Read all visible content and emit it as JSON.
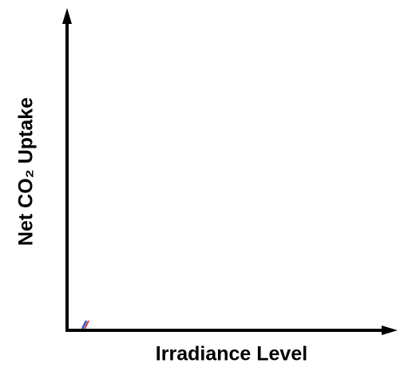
{
  "chart_data": {
    "type": "line",
    "xlabel": "Irradiance Level",
    "ylabel": "Net CO₂ Uptake"
  }
}
